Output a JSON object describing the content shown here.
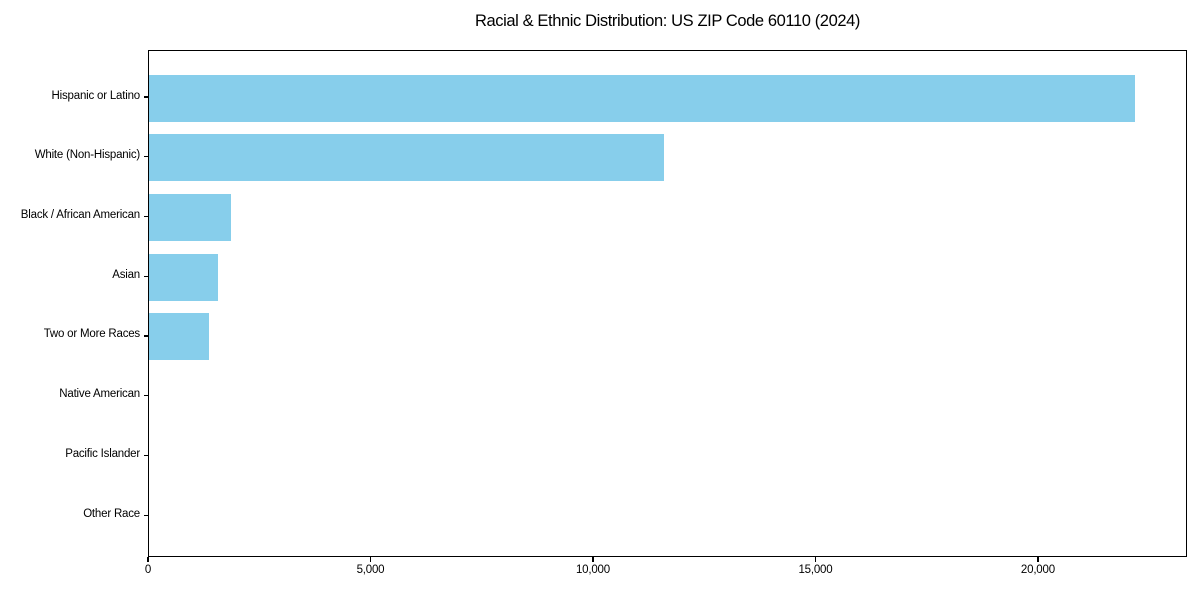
{
  "title": "Racial & Ethnic Distribution: US ZIP Code 60110 (2024)",
  "chart_data": {
    "type": "bar",
    "orientation": "horizontal",
    "title": "Racial & Ethnic Distribution: US ZIP Code 60110 (2024)",
    "xlabel": "",
    "ylabel": "",
    "categories": [
      "Hispanic or Latino",
      "White (Non-Hispanic)",
      "Black / African American",
      "Asian",
      "Two or More Races",
      "Native American",
      "Pacific Islander",
      "Other Race"
    ],
    "values": [
      22200,
      11600,
      1850,
      1550,
      1350,
      0,
      0,
      0
    ],
    "xlim": [
      0,
      23350
    ],
    "xticks": [
      0,
      5000,
      10000,
      15000,
      20000
    ],
    "xtick_labels": [
      "0",
      "5,000",
      "10,000",
      "15,000",
      "20,000"
    ],
    "bar_color": "#87CEEB",
    "background_color": "#ffffff",
    "text_color": "#000000",
    "grid": false,
    "legend": false
  }
}
